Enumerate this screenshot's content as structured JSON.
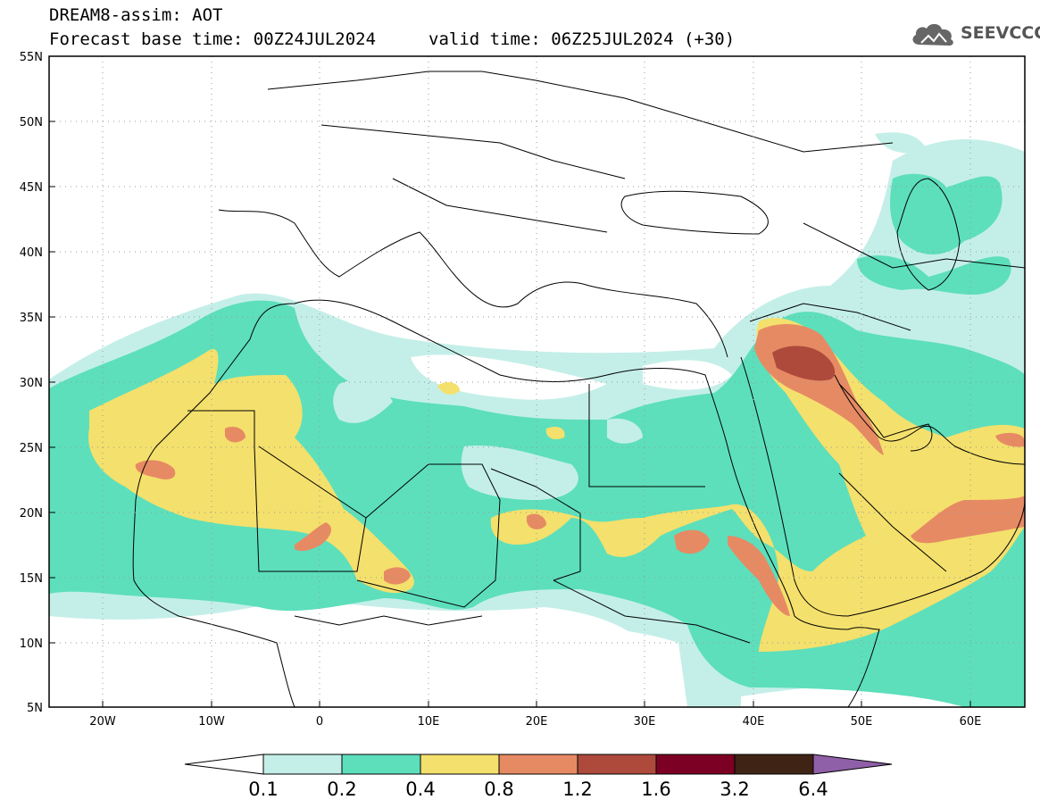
{
  "header": {
    "line1": "DREAM8-assim: AOT",
    "line2": "Forecast base time: 00Z24JUL2024",
    "line3": "valid time: 06Z25JUL2024 (+30)"
  },
  "logo": {
    "text": "SEEVCCC",
    "icon": "cloud-icon"
  },
  "map": {
    "lat_labels": [
      "55N",
      "50N",
      "45N",
      "40N",
      "35N",
      "30N",
      "25N",
      "20N",
      "15N",
      "10N",
      "5N"
    ],
    "lon_labels": [
      "20W",
      "10W",
      "0",
      "10E",
      "20E",
      "30E",
      "40E",
      "50E",
      "60E"
    ],
    "lat_range": [
      5,
      55
    ],
    "lon_range": [
      -25,
      65
    ]
  },
  "colorbar": {
    "labels": [
      "0.1",
      "0.2",
      "0.4",
      "0.8",
      "1.2",
      "1.6",
      "3.2",
      "6.4"
    ],
    "colors": [
      "#ffffff",
      "#c4efe8",
      "#5ddfbb",
      "#f4e06c",
      "#e68a64",
      "#ad4a3c",
      "#7c0023",
      "#3f2314",
      "#8f5fa8"
    ]
  }
}
